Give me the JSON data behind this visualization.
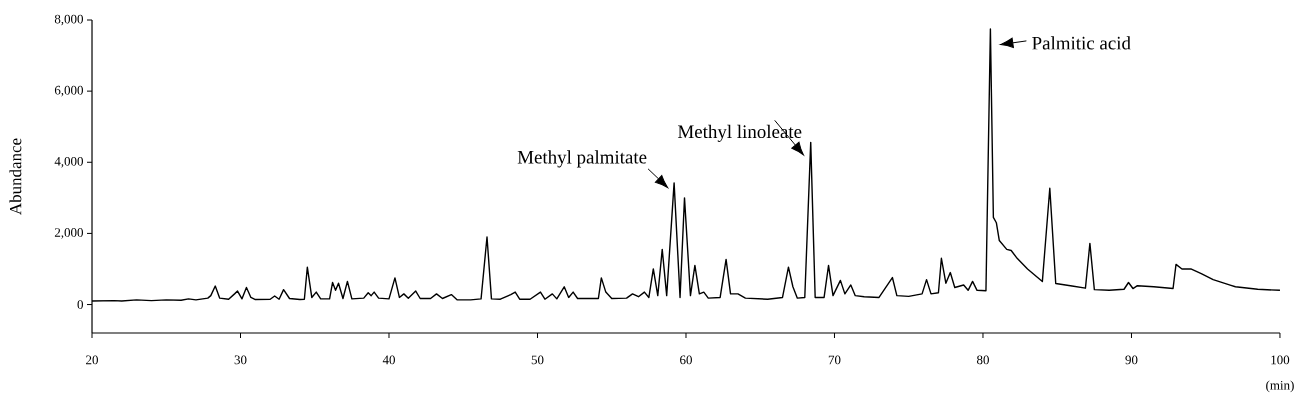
{
  "chart_data": {
    "type": "line",
    "ylabel": "Abundance",
    "xlabel": "(min)",
    "color": "#000000",
    "xlim": [
      20,
      100
    ],
    "ylim": [
      -800,
      8000
    ],
    "xticks": [
      20,
      30,
      40,
      50,
      60,
      70,
      80,
      90,
      100
    ],
    "yticks": [
      0,
      {
        "value": 2000,
        "label": "2,000"
      },
      {
        "value": 4000,
        "label": "4,000"
      },
      {
        "value": 6000,
        "label": "6,000"
      },
      {
        "value": 8000,
        "label": "8,000"
      }
    ],
    "annotations": [
      {
        "text": "Methyl palmitate",
        "x": 59.2,
        "y": 3420
      },
      {
        "text": "Methyl linoleate",
        "x": 68.4,
        "y": 4560
      },
      {
        "text": "Palmitic acid",
        "x": 80.5,
        "y": 7750
      }
    ],
    "x": [
      20,
      21.5,
      22,
      23,
      24,
      25,
      26,
      26.5,
      27,
      27.8,
      28.0,
      28.3,
      28.6,
      29.2,
      29.6,
      29.8,
      30.1,
      30.4,
      30.7,
      31,
      32,
      32.3,
      32.6,
      32.9,
      33.3,
      34,
      34.3,
      34.5,
      34.8,
      35.1,
      35.4,
      36,
      36.2,
      36.4,
      36.6,
      36.9,
      37.2,
      37.5,
      38.3,
      38.6,
      38.8,
      39.0,
      39.3,
      40.0,
      40.4,
      40.7,
      41.0,
      41.3,
      41.8,
      42.1,
      42.8,
      43.2,
      43.6,
      44.2,
      44.6,
      45.5,
      46.2,
      46.6,
      46.9,
      47.5,
      48.2,
      48.5,
      48.8,
      49.5,
      50.2,
      50.5,
      51,
      51.3,
      51.8,
      52.1,
      52.4,
      52.7,
      53.5,
      54.1,
      54.3,
      54.6,
      55,
      56,
      56.4,
      56.8,
      57.2,
      57.5,
      57.8,
      58.1,
      58.4,
      58.7,
      59.2,
      59.6,
      59.9,
      60.3,
      60.6,
      60.9,
      61.2,
      61.5,
      62.3,
      62.7,
      63.0,
      63.5,
      64,
      65.5,
      66.5,
      66.9,
      67.2,
      67.5,
      68.0,
      68.4,
      68.7,
      69.3,
      69.6,
      69.9,
      70.4,
      70.7,
      71.1,
      71.4,
      72,
      73,
      73.9,
      74.2,
      75,
      75.9,
      76.2,
      76.5,
      77.0,
      77.2,
      77.5,
      77.8,
      78.1,
      78.7,
      79.0,
      79.3,
      79.6,
      80.2,
      80.5,
      80.7,
      80.9,
      81.1,
      81.6,
      81.9,
      82.3,
      83,
      84.0,
      84.5,
      84.9,
      86,
      86.9,
      87.2,
      87.5,
      88.5,
      89.5,
      89.8,
      90.1,
      90.4,
      91.5,
      92.8,
      93.0,
      93.4,
      94.0,
      94.7,
      95.5,
      96.7,
      97,
      98.5,
      100
    ],
    "values": [
      100,
      110,
      100,
      130,
      110,
      130,
      120,
      160,
      130,
      180,
      250,
      520,
      180,
      150,
      300,
      380,
      160,
      480,
      200,
      140,
      150,
      240,
      150,
      420,
      170,
      140,
      150,
      1050,
      200,
      350,
      160,
      160,
      620,
      400,
      600,
      170,
      650,
      160,
      180,
      330,
      250,
      350,
      180,
      160,
      750,
      200,
      300,
      180,
      380,
      170,
      170,
      300,
      170,
      280,
      130,
      130,
      160,
      1900,
      160,
      150,
      280,
      350,
      150,
      150,
      350,
      150,
      300,
      160,
      500,
      200,
      350,
      170,
      170,
      170,
      750,
      350,
      170,
      180,
      300,
      220,
      350,
      200,
      1000,
      250,
      1550,
      250,
      3420,
      200,
      3000,
      250,
      1100,
      300,
      350,
      180,
      200,
      1270,
      300,
      300,
      180,
      150,
      200,
      1050,
      500,
      180,
      200,
      4560,
      200,
      200,
      1100,
      250,
      680,
      300,
      550,
      250,
      220,
      200,
      760,
      250,
      230,
      300,
      700,
      300,
      330,
      1300,
      600,
      900,
      480,
      550,
      400,
      650,
      400,
      390,
      7750,
      2450,
      2300,
      1800,
      1550,
      1520,
      1300,
      1000,
      650,
      3270,
      590,
      520,
      460,
      1720,
      420,
      400,
      430,
      620,
      450,
      530,
      500,
      450,
      1130,
      1000,
      1000,
      870,
      700,
      540,
      500,
      430,
      400
    ]
  }
}
